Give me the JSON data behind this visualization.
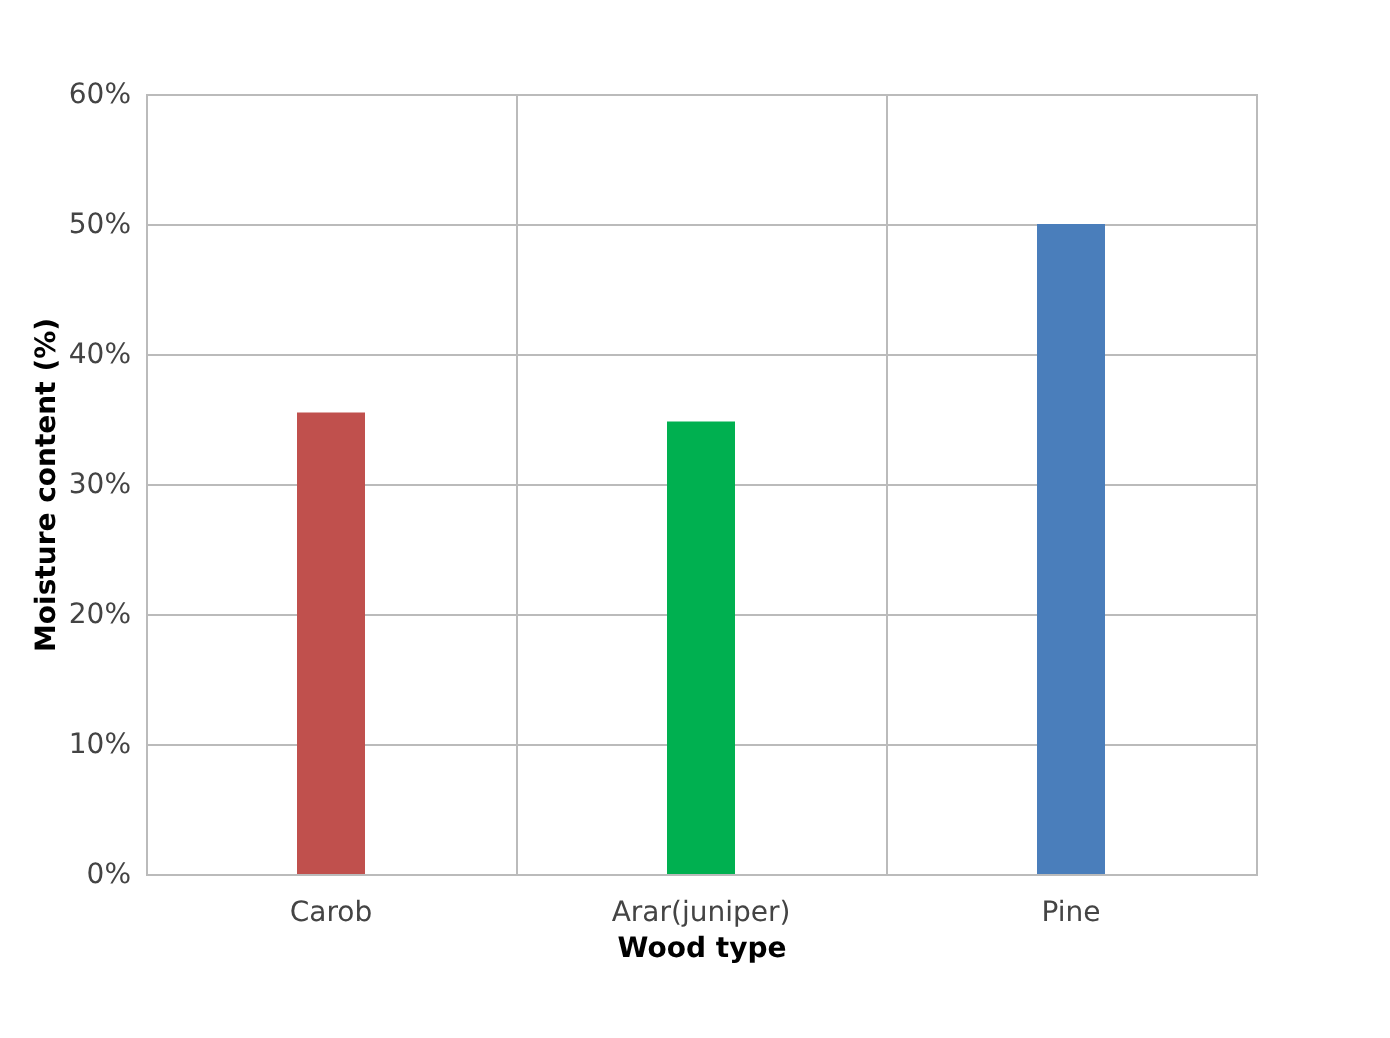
{
  "chart_data": {
    "type": "bar",
    "xlabel": "Wood type",
    "ylabel": "Moisture content (%)",
    "categories": [
      "Carob",
      "Arar(juniper)",
      "Pine"
    ],
    "values": [
      35.5,
      34.8,
      50.0
    ],
    "colors": [
      "#c0504d",
      "#00b050",
      "#4a7ebb"
    ],
    "ylim": [
      0,
      60
    ],
    "yticks": [
      {
        "value": 0,
        "label": "0%"
      },
      {
        "value": 10,
        "label": "10%"
      },
      {
        "value": 20,
        "label": "20%"
      },
      {
        "value": 30,
        "label": "30%"
      },
      {
        "value": 40,
        "label": "40%"
      },
      {
        "value": 50,
        "label": "50%"
      },
      {
        "value": 60,
        "label": "60%"
      }
    ],
    "grid": true,
    "legend": false
  }
}
